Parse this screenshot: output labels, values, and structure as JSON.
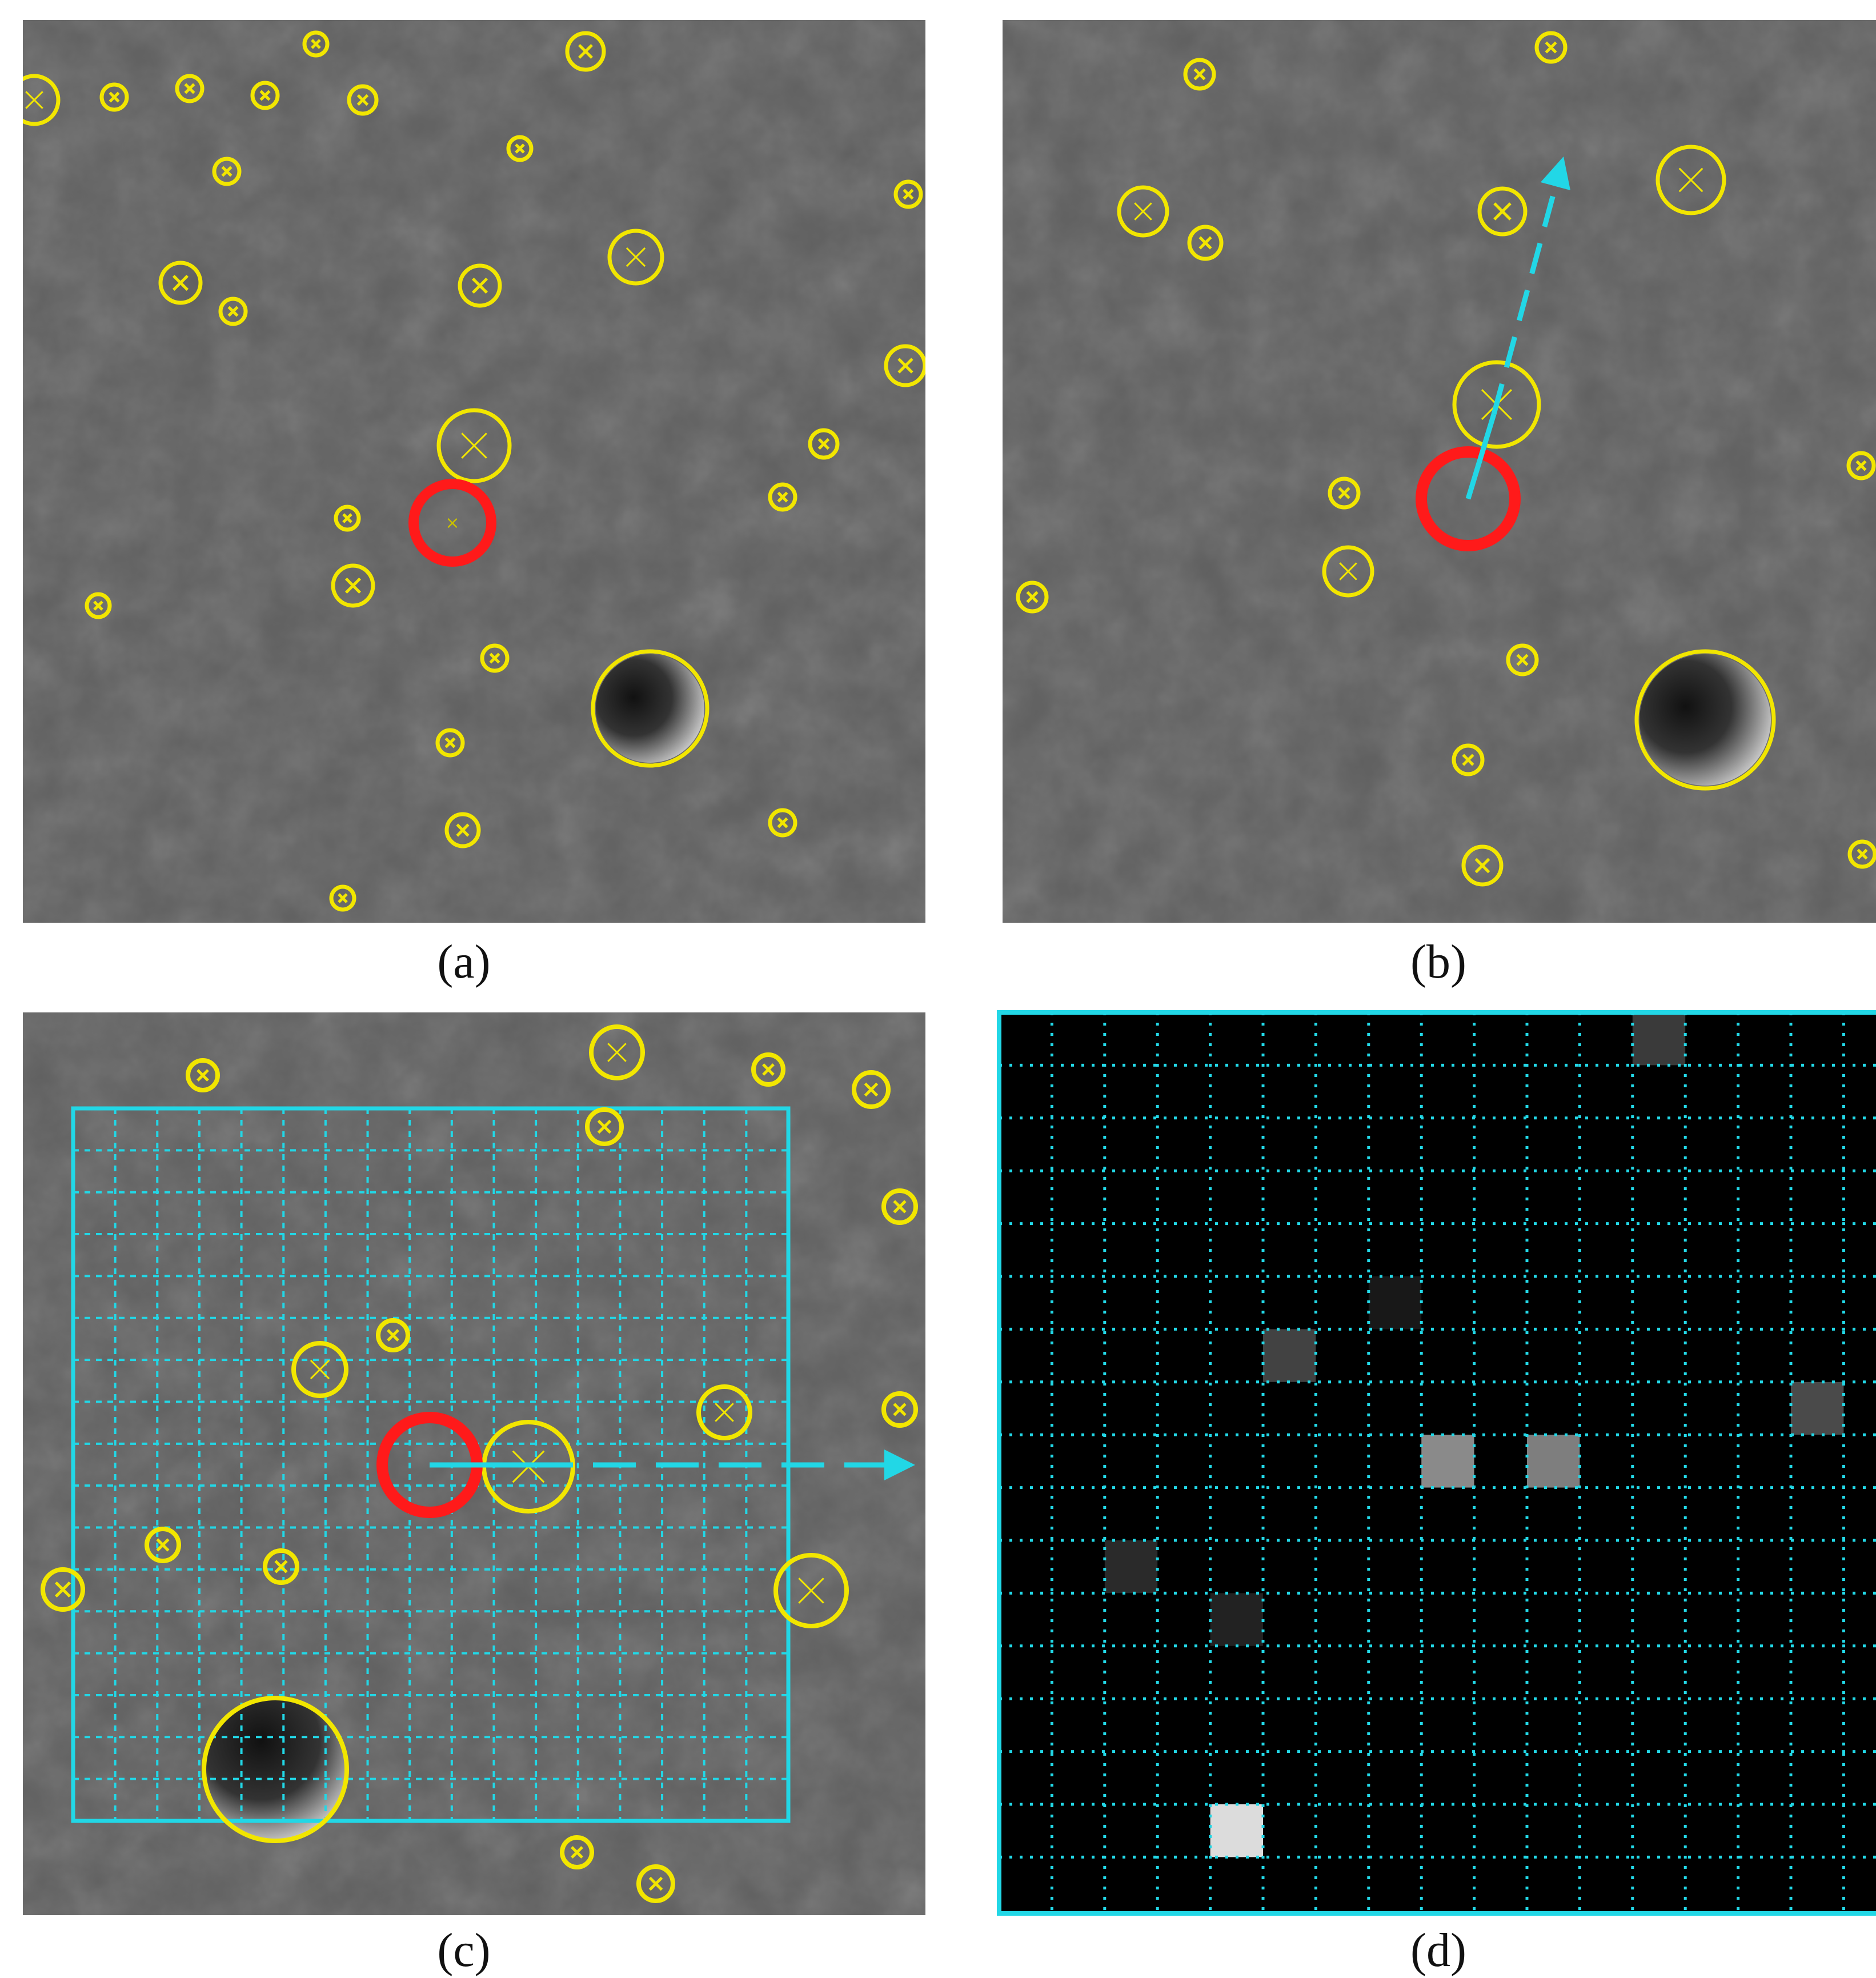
{
  "figure": {
    "captions": {
      "a": "(a)",
      "b": "(b)",
      "c": "(c)",
      "d": "(d)"
    },
    "colors": {
      "terrain": "#5f5f5f",
      "crater_ring": "#f2e600",
      "target_ring": "#ff1a1a",
      "grid": "#22d7e6",
      "arrow": "#22d7e6",
      "map_background": "#000000"
    },
    "panels": [
      {
        "id": "a",
        "content": "crater detections on Mars surface image; target crater highlighted in red"
      },
      {
        "id": "b",
        "content": "next frame with target crater and dashed motion direction arrow"
      },
      {
        "id": "c",
        "content": "grid overlaid around target crater with horizontal reference direction arrow"
      },
      {
        "id": "d",
        "content": "grid feature map with cells shaded by neighbouring crater presence"
      }
    ]
  }
}
